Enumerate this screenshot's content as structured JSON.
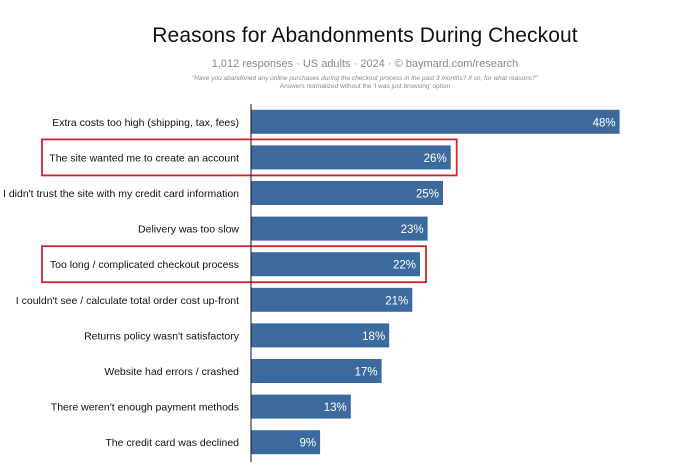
{
  "chart_data": {
    "type": "bar",
    "orientation": "horizontal",
    "title": "Reasons for Abandonments During Checkout",
    "subtitle": "1,012 responses  ·  US adults  ·  2024  ·  ©  baymard.com/research",
    "note_line1": "\"Have you abandoned any online purchases during the checkout process in the past 3 months? If so, for what reasons?\"",
    "note_line2": "Answers normalized without the 'I was just browsing' option",
    "categories": [
      "Extra costs too high (shipping, tax, fees)",
      "The site wanted me to create an account",
      "I didn't trust the site with my credit card information",
      "Delivery was too slow",
      "Too long / complicated checkout process",
      "I couldn't see / calculate total order cost up-front",
      "Returns policy wasn't satisfactory",
      "Website had errors / crashed",
      "There weren't enough payment methods",
      "The credit card was declined"
    ],
    "values": [
      48,
      26,
      25,
      23,
      22,
      21,
      18,
      17,
      13,
      9
    ],
    "value_labels": [
      "48%",
      "26%",
      "25%",
      "23%",
      "22%",
      "21%",
      "18%",
      "17%",
      "13%",
      "9%"
    ],
    "highlighted": [
      "The site wanted me to create an account",
      "Too long / complicated checkout process"
    ],
    "xlim": [
      0,
      50
    ],
    "grid": false,
    "bar_color": "#3d6a9e",
    "highlight_color": "#d0212e"
  }
}
